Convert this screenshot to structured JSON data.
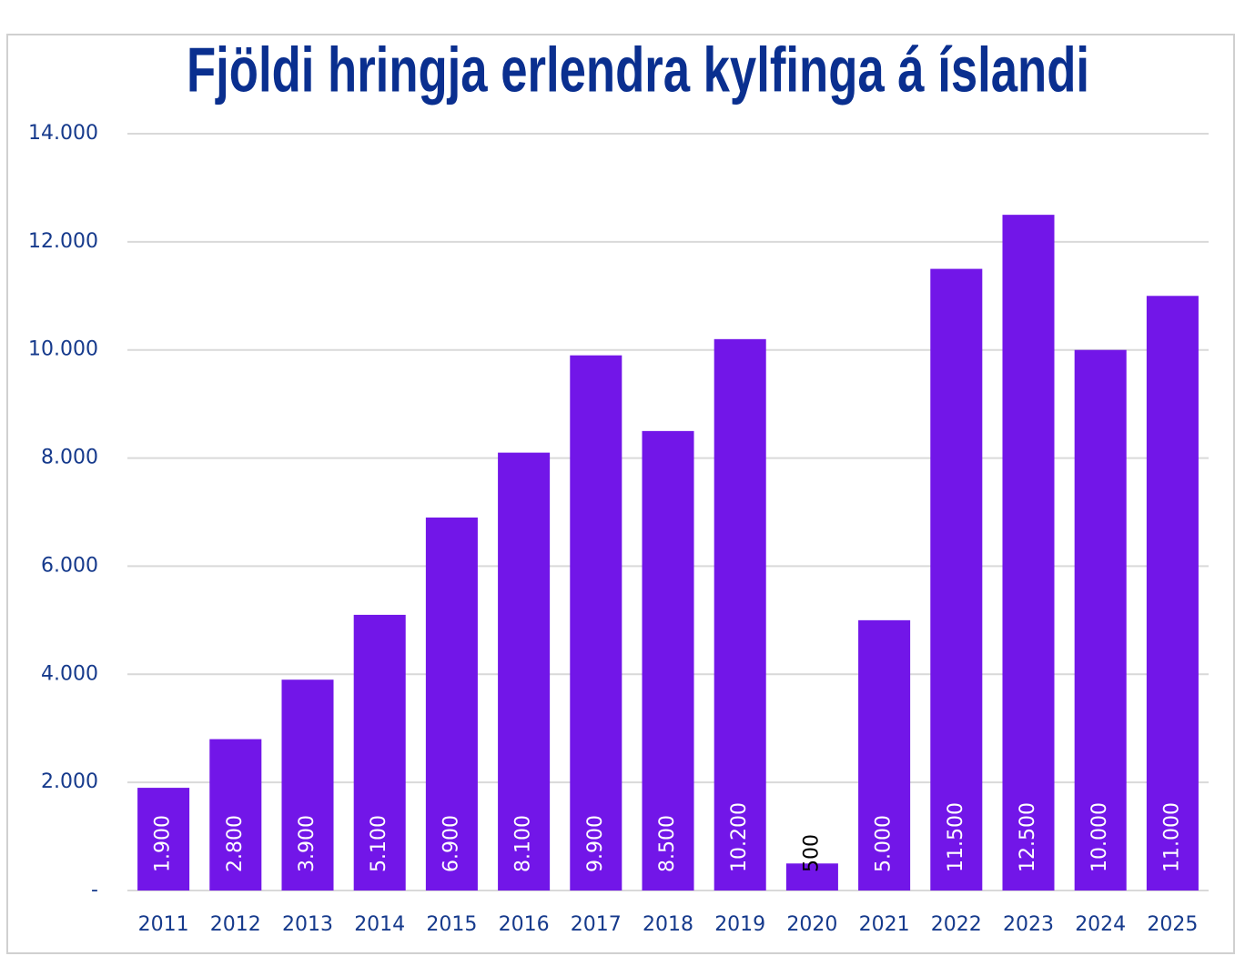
{
  "chart_data": {
    "type": "bar",
    "title": "Fjöldi hringja erlendra kylfinga á íslandi",
    "categories": [
      "2011",
      "2012",
      "2013",
      "2014",
      "2015",
      "2016",
      "2017",
      "2018",
      "2019",
      "2020",
      "2021",
      "2022",
      "2023",
      "2024",
      "2025"
    ],
    "values": [
      1900,
      2800,
      3900,
      5100,
      6900,
      8100,
      9900,
      8500,
      10200,
      500,
      5000,
      11500,
      12500,
      10000,
      11000
    ],
    "value_labels": [
      "1.900",
      "2.800",
      "3.900",
      "5.100",
      "6.900",
      "8.100",
      "9.900",
      "8.500",
      "10.200",
      "500",
      "5.000",
      "11.500",
      "12.500",
      "10.000",
      "11.000"
    ],
    "color": "#7216e8",
    "ylim": [
      0,
      14000
    ],
    "yticks": [
      {
        "value": 0,
        "label": "-"
      },
      {
        "value": 2000,
        "label": "2.000"
      },
      {
        "value": 4000,
        "label": "4.000"
      },
      {
        "value": 6000,
        "label": "6.000"
      },
      {
        "value": 8000,
        "label": "8.000"
      },
      {
        "value": 10000,
        "label": "10.000"
      },
      {
        "value": 12000,
        "label": "12.000"
      },
      {
        "value": 14000,
        "label": "14.000"
      }
    ],
    "grid": true
  }
}
